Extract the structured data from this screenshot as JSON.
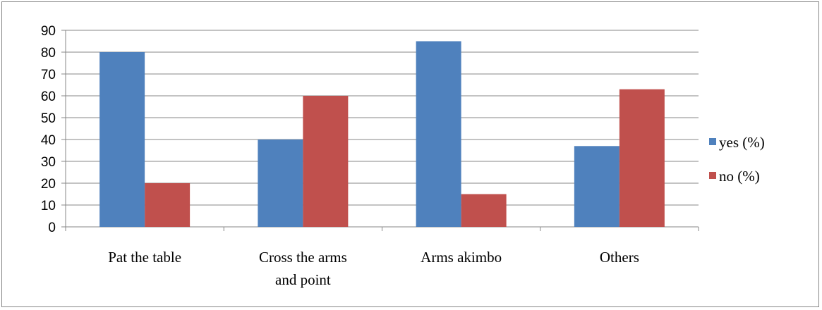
{
  "chart_data": {
    "type": "bar",
    "categories": [
      [
        "Pat the table"
      ],
      [
        "Cross the arms",
        "and point"
      ],
      [
        "Arms akimbo"
      ],
      [
        "Others"
      ]
    ],
    "series": [
      {
        "name": "yes (%)",
        "color": "#4F81BD",
        "values": [
          80,
          40,
          85,
          37
        ]
      },
      {
        "name": "no (%)",
        "color": "#C0504D",
        "values": [
          20,
          60,
          15,
          63
        ]
      }
    ],
    "ylim": [
      0,
      90
    ],
    "yticks": [
      0,
      10,
      20,
      30,
      40,
      50,
      60,
      70,
      80,
      90
    ],
    "grid": true,
    "legend_position": "right",
    "title": "",
    "xlabel": "",
    "ylabel": ""
  }
}
